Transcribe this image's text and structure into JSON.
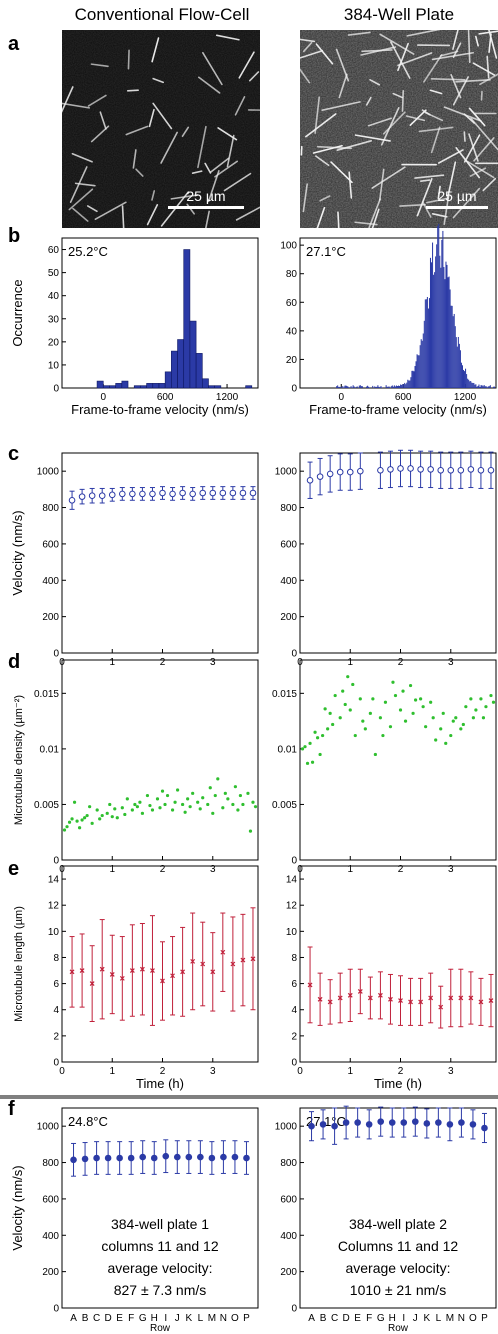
{
  "columns": [
    "Conventional Flow-Cell",
    "384-Well Plate"
  ],
  "panel_labels": [
    "a",
    "b",
    "c",
    "d",
    "e",
    "f"
  ],
  "scale_bars": [
    "25 µm",
    "25 µm"
  ],
  "colors": {
    "blue": "#2b3aa6",
    "green": "#2fbf2f",
    "red": "#c0203a",
    "divider": "#808080"
  },
  "chart_data": [
    {
      "id": "b-left",
      "type": "bar",
      "panel": "b",
      "temperature": "25.2°C",
      "xlabel": "Frame-to-frame velocity (nm/s)",
      "ylabel": "Occurrence",
      "xlim": [
        -400,
        1500
      ],
      "ylim": [
        0,
        65
      ],
      "xticks": [
        0,
        600,
        1200
      ],
      "yticks": [
        0,
        10,
        20,
        30,
        40,
        50,
        60
      ],
      "bin_width": 60,
      "bins": [
        [
          -30,
          3
        ],
        [
          30,
          1
        ],
        [
          90,
          1
        ],
        [
          150,
          2
        ],
        [
          210,
          3
        ],
        [
          330,
          1
        ],
        [
          390,
          1
        ],
        [
          450,
          2
        ],
        [
          510,
          2
        ],
        [
          570,
          2
        ],
        [
          630,
          7
        ],
        [
          690,
          16
        ],
        [
          750,
          21
        ],
        [
          810,
          60
        ],
        [
          870,
          29
        ],
        [
          930,
          15
        ],
        [
          990,
          4
        ],
        [
          1050,
          1
        ],
        [
          1110,
          1
        ],
        [
          1410,
          1
        ]
      ]
    },
    {
      "id": "b-right",
      "type": "bar",
      "panel": "b",
      "temperature": "27.1°C",
      "xlabel": "Frame-to-frame velocity (nm/s)",
      "ylabel": "",
      "xlim": [
        -400,
        1500
      ],
      "ylim": [
        0,
        105
      ],
      "xticks": [
        0,
        600,
        1200
      ],
      "yticks": [
        0,
        20,
        40,
        60,
        80,
        100
      ],
      "distribution": {
        "mean": 950,
        "sd": 120,
        "peak": 98,
        "bin_width": 10,
        "background": 2
      }
    },
    {
      "id": "c-left",
      "type": "scatter",
      "panel": "c",
      "ylabel": "Velocity (nm/s)",
      "xlim": [
        0,
        3.9
      ],
      "ylim": [
        0,
        1100
      ],
      "yticks": [
        0,
        200,
        400,
        600,
        800,
        1000
      ],
      "xticks": [
        0,
        1,
        2,
        3
      ],
      "x": [
        0.2,
        0.4,
        0.6,
        0.8,
        1.0,
        1.2,
        1.4,
        1.6,
        1.8,
        2.0,
        2.2,
        2.4,
        2.6,
        2.8,
        3.0,
        3.2,
        3.4,
        3.6,
        3.8
      ],
      "y": [
        840,
        860,
        865,
        865,
        870,
        875,
        875,
        875,
        875,
        880,
        875,
        880,
        875,
        880,
        880,
        880,
        880,
        880,
        880
      ],
      "err": [
        50,
        40,
        40,
        40,
        35,
        35,
        35,
        35,
        35,
        35,
        35,
        35,
        35,
        35,
        35,
        35,
        35,
        35,
        35
      ]
    },
    {
      "id": "c-right",
      "type": "scatter",
      "panel": "c",
      "ylabel": "",
      "xlim": [
        0,
        3.9
      ],
      "ylim": [
        0,
        1100
      ],
      "yticks": [
        0,
        200,
        400,
        600,
        800,
        1000
      ],
      "xticks": [
        0,
        1,
        2,
        3
      ],
      "x": [
        0.2,
        0.4,
        0.6,
        0.8,
        1.0,
        1.2,
        1.6,
        1.8,
        2.0,
        2.2,
        2.4,
        2.6,
        2.8,
        3.0,
        3.2,
        3.4,
        3.6,
        3.8
      ],
      "y": [
        950,
        970,
        985,
        995,
        995,
        1000,
        1005,
        1010,
        1015,
        1015,
        1010,
        1010,
        1005,
        1005,
        1005,
        1010,
        1005,
        1005
      ],
      "err": [
        100,
        100,
        100,
        100,
        100,
        100,
        100,
        100,
        100,
        100,
        100,
        100,
        100,
        100,
        100,
        100,
        100,
        100
      ]
    },
    {
      "id": "d-left",
      "type": "scatter",
      "panel": "d",
      "ylabel": "Microtubule density (µm⁻²)",
      "xlim": [
        0,
        3.9
      ],
      "ylim": [
        0,
        0.018
      ],
      "yticks": [
        0,
        0.005,
        0.01,
        0.015
      ],
      "xticks": [
        0,
        1,
        2,
        3
      ],
      "x": [
        0.05,
        0.1,
        0.15,
        0.2,
        0.25,
        0.3,
        0.35,
        0.4,
        0.45,
        0.5,
        0.55,
        0.6,
        0.7,
        0.75,
        0.8,
        0.9,
        0.95,
        1.0,
        1.05,
        1.1,
        1.2,
        1.25,
        1.3,
        1.4,
        1.45,
        1.5,
        1.55,
        1.6,
        1.7,
        1.75,
        1.8,
        1.9,
        1.95,
        2.0,
        2.05,
        2.1,
        2.2,
        2.25,
        2.3,
        2.4,
        2.45,
        2.5,
        2.55,
        2.6,
        2.7,
        2.75,
        2.8,
        2.9,
        2.95,
        3.0,
        3.05,
        3.1,
        3.2,
        3.25,
        3.3,
        3.4,
        3.45,
        3.5,
        3.55,
        3.6,
        3.7,
        3.75,
        3.8,
        3.85
      ],
      "y": [
        0.0027,
        0.003,
        0.0034,
        0.0037,
        0.0052,
        0.0035,
        0.0029,
        0.0036,
        0.0038,
        0.004,
        0.0048,
        0.0033,
        0.0045,
        0.0037,
        0.004,
        0.0042,
        0.005,
        0.0039,
        0.0046,
        0.0038,
        0.0047,
        0.0041,
        0.0055,
        0.0045,
        0.005,
        0.0048,
        0.0052,
        0.0042,
        0.0058,
        0.0049,
        0.0045,
        0.0055,
        0.0047,
        0.0062,
        0.005,
        0.0058,
        0.0045,
        0.0052,
        0.0063,
        0.005,
        0.0043,
        0.0055,
        0.0048,
        0.006,
        0.0052,
        0.0046,
        0.0056,
        0.005,
        0.0065,
        0.0042,
        0.0058,
        0.0073,
        0.0047,
        0.006,
        0.0055,
        0.005,
        0.0066,
        0.0045,
        0.0058,
        0.005,
        0.006,
        0.0026,
        0.0052,
        0.0048
      ]
    },
    {
      "id": "d-right",
      "type": "scatter",
      "panel": "d",
      "ylabel": "",
      "xlim": [
        0,
        3.9
      ],
      "ylim": [
        0,
        0.018
      ],
      "yticks": [
        0,
        0.005,
        0.01,
        0.015
      ],
      "xticks": [
        0,
        1,
        2,
        3
      ],
      "x": [
        0.05,
        0.1,
        0.15,
        0.2,
        0.25,
        0.3,
        0.35,
        0.4,
        0.45,
        0.5,
        0.55,
        0.6,
        0.65,
        0.7,
        0.8,
        0.85,
        0.9,
        0.95,
        1.0,
        1.05,
        1.1,
        1.2,
        1.25,
        1.3,
        1.4,
        1.45,
        1.5,
        1.6,
        1.65,
        1.7,
        1.8,
        1.85,
        1.9,
        2.0,
        2.05,
        2.1,
        2.2,
        2.25,
        2.3,
        2.4,
        2.45,
        2.5,
        2.6,
        2.65,
        2.7,
        2.8,
        2.85,
        2.9,
        3.0,
        3.05,
        3.1,
        3.2,
        3.25,
        3.3,
        3.4,
        3.45,
        3.5,
        3.6,
        3.65,
        3.7,
        3.8,
        3.85
      ],
      "y": [
        0.01,
        0.0102,
        0.0087,
        0.0105,
        0.0088,
        0.0115,
        0.011,
        0.0095,
        0.0112,
        0.0136,
        0.0118,
        0.0132,
        0.0122,
        0.0148,
        0.0128,
        0.0152,
        0.014,
        0.0165,
        0.0135,
        0.0158,
        0.0112,
        0.0145,
        0.0125,
        0.0118,
        0.0132,
        0.0145,
        0.0095,
        0.0128,
        0.0112,
        0.0142,
        0.012,
        0.016,
        0.0148,
        0.0135,
        0.0152,
        0.0125,
        0.0157,
        0.0132,
        0.0144,
        0.0145,
        0.0138,
        0.012,
        0.0142,
        0.0128,
        0.0108,
        0.0118,
        0.0132,
        0.0105,
        0.0112,
        0.0125,
        0.0128,
        0.0118,
        0.0122,
        0.0138,
        0.0145,
        0.0128,
        0.0135,
        0.0145,
        0.0128,
        0.0138,
        0.0148,
        0.0142
      ]
    },
    {
      "id": "e-left",
      "type": "scatter",
      "panel": "e",
      "ylabel": "Microtubule length (µm)",
      "xlabel": "Time (h)",
      "xlim": [
        0,
        3.9
      ],
      "ylim": [
        0,
        15
      ],
      "yticks": [
        0,
        2,
        4,
        6,
        8,
        10,
        12,
        14
      ],
      "xticks": [
        0,
        1,
        2,
        3
      ],
      "x": [
        0.2,
        0.4,
        0.6,
        0.8,
        1.0,
        1.2,
        1.4,
        1.6,
        1.8,
        2.0,
        2.2,
        2.4,
        2.6,
        2.8,
        3.0,
        3.2,
        3.4,
        3.6,
        3.8
      ],
      "y": [
        6.9,
        7.0,
        6.0,
        7.1,
        6.7,
        6.4,
        7.0,
        7.1,
        7.0,
        6.2,
        6.6,
        6.9,
        7.7,
        7.5,
        6.9,
        8.4,
        7.5,
        7.8,
        7.9
      ],
      "err": [
        2.7,
        2.8,
        2.9,
        3.8,
        3.0,
        3.2,
        3.5,
        3.5,
        4.2,
        3.0,
        3.0,
        3.4,
        3.7,
        3.2,
        3.0,
        3.0,
        3.6,
        3.5,
        3.9
      ]
    },
    {
      "id": "e-right",
      "type": "scatter",
      "panel": "e",
      "ylabel": "",
      "xlabel": "Time (h)",
      "xlim": [
        0,
        3.9
      ],
      "ylim": [
        0,
        15
      ],
      "yticks": [
        0,
        2,
        4,
        6,
        8,
        10,
        12,
        14
      ],
      "xticks": [
        0,
        1,
        2,
        3
      ],
      "x": [
        0.2,
        0.4,
        0.6,
        0.8,
        1.0,
        1.2,
        1.4,
        1.6,
        1.8,
        2.0,
        2.2,
        2.4,
        2.6,
        2.8,
        3.0,
        3.2,
        3.4,
        3.6,
        3.8
      ],
      "y": [
        5.9,
        4.8,
        4.6,
        4.9,
        5.1,
        5.4,
        4.9,
        5.1,
        4.8,
        4.7,
        4.6,
        4.6,
        4.9,
        4.2,
        4.9,
        4.9,
        4.9,
        4.6,
        4.7
      ],
      "err": [
        2.9,
        2.0,
        1.7,
        1.9,
        2.0,
        1.7,
        1.6,
        1.8,
        1.9,
        1.9,
        1.8,
        1.8,
        1.9,
        1.6,
        2.2,
        2.2,
        2.0,
        1.8,
        2.0
      ]
    },
    {
      "id": "f-left",
      "type": "scatter",
      "panel": "f",
      "temperature": "24.8°C",
      "ylabel": "Velocity (nm/s)",
      "xlabel": "Row",
      "ylim": [
        0,
        1100
      ],
      "yticks": [
        0,
        200,
        400,
        600,
        800,
        1000
      ],
      "categories": [
        "A",
        "B",
        "C",
        "D",
        "E",
        "F",
        "G",
        "H",
        "I",
        "J",
        "K",
        "L",
        "M",
        "N",
        "O",
        "P"
      ],
      "values": [
        815,
        820,
        825,
        825,
        825,
        825,
        830,
        825,
        835,
        830,
        830,
        830,
        825,
        830,
        830,
        825
      ],
      "err": [
        90,
        90,
        90,
        90,
        90,
        90,
        90,
        90,
        90,
        90,
        90,
        90,
        90,
        90,
        90,
        90
      ],
      "annotation": [
        "384-well plate 1",
        "columns 11 and 12",
        "average velocity:",
        "827 ± 7.3 nm/s"
      ]
    },
    {
      "id": "f-right",
      "type": "scatter",
      "panel": "f",
      "temperature": "27.1°C",
      "ylabel": "",
      "xlabel": "Row",
      "ylim": [
        0,
        1100
      ],
      "yticks": [
        0,
        200,
        400,
        600,
        800,
        1000
      ],
      "categories": [
        "A",
        "B",
        "C",
        "D",
        "E",
        "F",
        "G",
        "H",
        "I",
        "J",
        "K",
        "L",
        "M",
        "N",
        "O",
        "P"
      ],
      "values": [
        1000,
        1010,
        1000,
        1020,
        1020,
        1010,
        1025,
        1020,
        1020,
        1025,
        1015,
        1020,
        1010,
        1020,
        1010,
        990
      ],
      "err": [
        80,
        80,
        100,
        90,
        80,
        80,
        80,
        80,
        80,
        80,
        80,
        80,
        90,
        80,
        80,
        80
      ],
      "annotation": [
        "384-well plate 2",
        "Columns 11 and 12",
        "average velocity:",
        "1010 ± 21 nm/s"
      ]
    }
  ]
}
